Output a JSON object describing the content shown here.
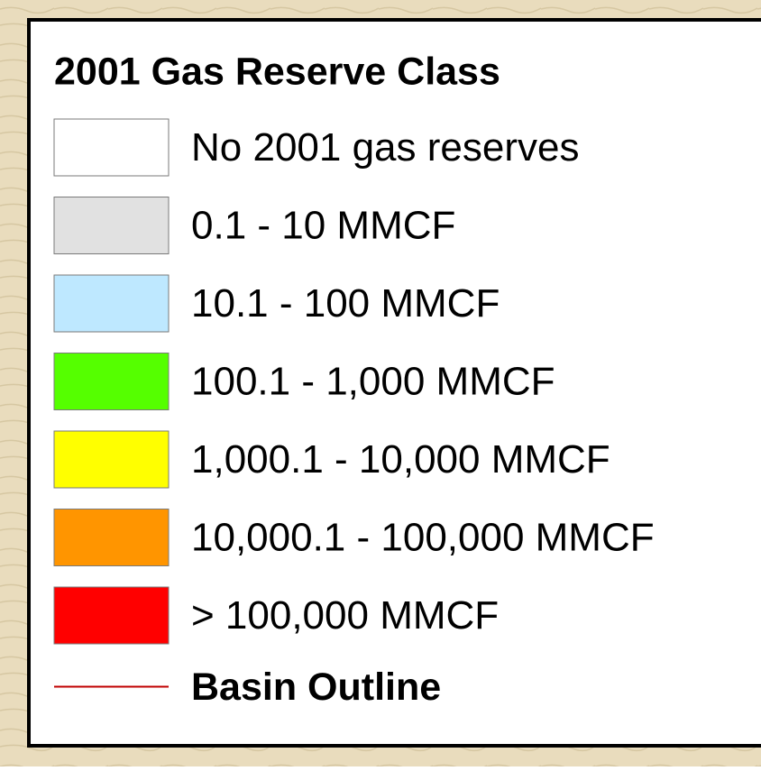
{
  "legend": {
    "title": "2001 Gas Reserve Class",
    "items": [
      {
        "label": "No 2001 gas reserves",
        "color": "#ffffff"
      },
      {
        "label": "0.1 - 10 MMCF",
        "color": "#e1e1e1"
      },
      {
        "label": "10.1 - 100 MMCF",
        "color": "#bee8ff"
      },
      {
        "label": "100.1 - 1,000 MMCF",
        "color": "#55ff00"
      },
      {
        "label": "1,000.1 - 10,000 MMCF",
        "color": "#ffff00"
      },
      {
        "label": "10,000.1 - 100,000 MMCF",
        "color": "#ff9500"
      },
      {
        "label": "> 100,000 MMCF",
        "color": "#ff0000"
      }
    ],
    "basin_outline": {
      "label": "Basin Outline",
      "color": "#c00000"
    }
  }
}
